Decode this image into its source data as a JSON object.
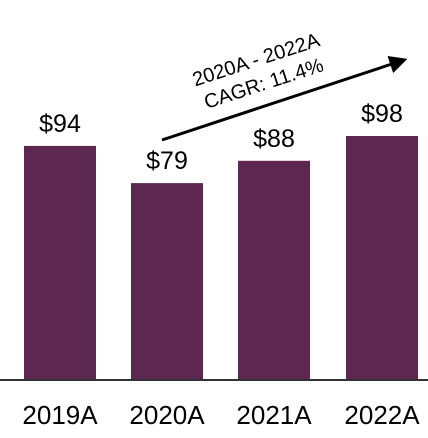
{
  "chart_data": {
    "type": "bar",
    "categories": [
      "2019A",
      "2020A",
      "2021A",
      "2022A"
    ],
    "values": [
      94,
      79,
      88,
      98
    ],
    "value_labels": [
      "$94",
      "$79",
      "$88",
      "$98"
    ],
    "color": "#5c2751",
    "annotations": [
      "2020A - 2022A",
      "CAGR: 11.4%"
    ]
  }
}
